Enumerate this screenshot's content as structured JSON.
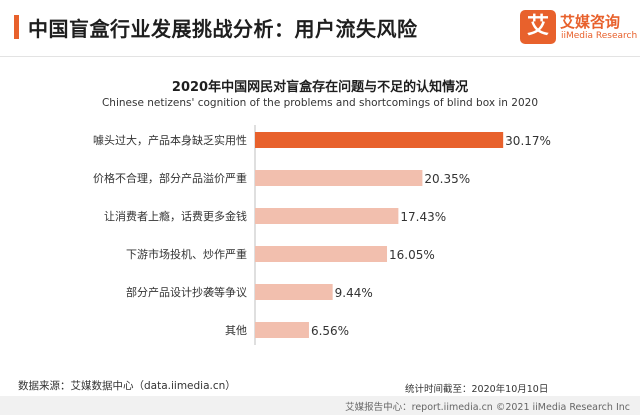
{
  "header": {
    "title": "中国盲盒行业发展挑战分析：用户流失风险",
    "logo_mark": "艾",
    "logo_cn": "艾媒咨询",
    "logo_en": "iiMedia Research"
  },
  "chart_data": {
    "type": "bar",
    "orientation": "horizontal",
    "title": "2020年中国网民对盲盒存在问题与不足的认知情况",
    "subtitle": "Chinese netizens' cognition of the problems and shortcomings of blind box in 2020",
    "categories": [
      "噱头过大，产品本身缺乏实用性",
      "价格不合理，部分产品溢价严重",
      "让消费者上瘾，话费更多金钱",
      "下游市场投机、炒作严重",
      "部分产品设计抄袭等争议",
      "其他"
    ],
    "values": [
      30.17,
      20.35,
      17.43,
      16.05,
      9.44,
      6.56
    ],
    "value_labels": [
      "30.17%",
      "20.35%",
      "17.43%",
      "16.05%",
      "9.44%",
      "6.56%"
    ],
    "unit": "%",
    "colors": {
      "highlight": "#e8612c",
      "default": "#f2bfae",
      "axis": "#bfbfbf"
    },
    "highlight_index": 0,
    "xlim": [
      0,
      31
    ]
  },
  "footer": {
    "source": "数据来源：艾媒数据中心（data.iimedia.cn）",
    "stat_time": "统计时间截至：2020年10月10日",
    "report": "艾媒报告中心：report.iimedia.cn  ©2021  iiMedia Research  Inc"
  }
}
